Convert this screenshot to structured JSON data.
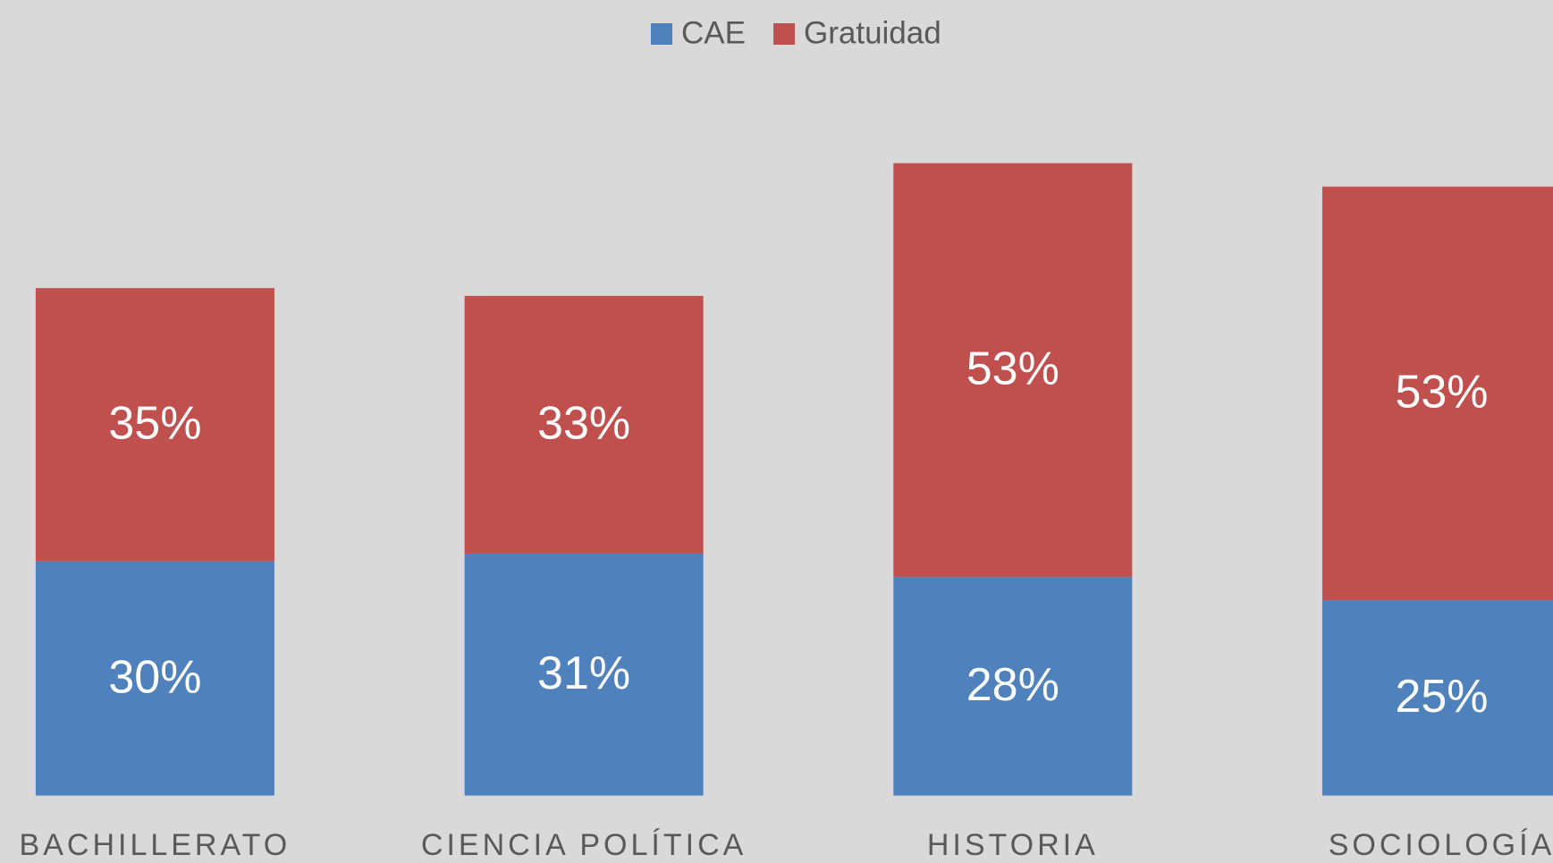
{
  "chart_data": {
    "type": "bar",
    "stacked": true,
    "categories": [
      "BACHILLERATO",
      "CIENCIA POLÍTICA",
      "HISTORIA",
      "SOCIOLOGÍA"
    ],
    "series": [
      {
        "name": "CAE",
        "color": "#4f81bd",
        "values": [
          30,
          31,
          28,
          25
        ],
        "value_labels": [
          "30%",
          "31%",
          "28%",
          "25%"
        ]
      },
      {
        "name": "Gratuidad",
        "color": "#c0504d",
        "values": [
          35,
          33,
          53,
          53
        ],
        "value_labels": [
          "35%",
          "33%",
          "53%",
          "53%"
        ]
      }
    ],
    "legend": "top"
  }
}
